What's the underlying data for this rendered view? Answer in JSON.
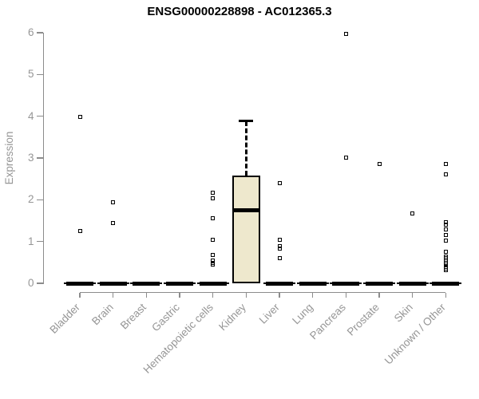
{
  "title": "ENSG00000228898 - AC012365.3",
  "chart_data": {
    "type": "boxplot",
    "title": "ENSG00000228898 - AC012365.3",
    "xlabel": "",
    "ylabel": "Expression",
    "ylim": [
      0,
      6
    ],
    "yticks": [
      0,
      1,
      2,
      3,
      4,
      5,
      6
    ],
    "grid": false,
    "legend": false,
    "categories": [
      "Bladder",
      "Brain",
      "Breast",
      "Gastric",
      "Hematopoietic cells",
      "Kidney",
      "Liver",
      "Lung",
      "Pancreas",
      "Prostate",
      "Skin",
      "Unknown / Other"
    ],
    "boxes": [
      {
        "category": "Bladder",
        "whisker_low": 0,
        "q1": 0,
        "median": 0,
        "q3": 0,
        "whisker_high": 0
      },
      {
        "category": "Brain",
        "whisker_low": 0,
        "q1": 0,
        "median": 0,
        "q3": 0,
        "whisker_high": 0
      },
      {
        "category": "Breast",
        "whisker_low": 0,
        "q1": 0,
        "median": 0,
        "q3": 0,
        "whisker_high": 0
      },
      {
        "category": "Gastric",
        "whisker_low": 0,
        "q1": 0,
        "median": 0,
        "q3": 0,
        "whisker_high": 0
      },
      {
        "category": "Hematopoietic cells",
        "whisker_low": 0,
        "q1": 0,
        "median": 0,
        "q3": 0,
        "whisker_high": 0
      },
      {
        "category": "Kidney",
        "whisker_low": 0,
        "q1": 0,
        "median": 1.75,
        "q3": 2.58,
        "whisker_high": 3.88
      },
      {
        "category": "Liver",
        "whisker_low": 0,
        "q1": 0,
        "median": 0,
        "q3": 0,
        "whisker_high": 0
      },
      {
        "category": "Lung",
        "whisker_low": 0,
        "q1": 0,
        "median": 0,
        "q3": 0,
        "whisker_high": 0
      },
      {
        "category": "Pancreas",
        "whisker_low": 0,
        "q1": 0,
        "median": 0,
        "q3": 0,
        "whisker_high": 0
      },
      {
        "category": "Prostate",
        "whisker_low": 0,
        "q1": 0,
        "median": 0,
        "q3": 0,
        "whisker_high": 0
      },
      {
        "category": "Skin",
        "whisker_low": 0,
        "q1": 0,
        "median": 0,
        "q3": 0,
        "whisker_high": 0
      },
      {
        "category": "Unknown / Other",
        "whisker_low": 0,
        "q1": 0,
        "median": 0,
        "q3": 0,
        "whisker_high": 0
      }
    ],
    "outliers": [
      {
        "category": "Bladder",
        "values": [
          3.98,
          1.26
        ]
      },
      {
        "category": "Brain",
        "values": [
          1.93,
          1.44
        ]
      },
      {
        "category": "Breast",
        "values": []
      },
      {
        "category": "Gastric",
        "values": []
      },
      {
        "category": "Hematopoietic cells",
        "values": [
          2.17,
          2.04,
          1.56,
          1.05,
          0.68,
          0.54,
          0.49,
          0.44
        ]
      },
      {
        "category": "Kidney",
        "values": []
      },
      {
        "category": "Liver",
        "values": [
          2.4,
          1.05,
          0.88,
          0.83,
          0.61
        ]
      },
      {
        "category": "Lung",
        "values": []
      },
      {
        "category": "Pancreas",
        "values": [
          5.97,
          3.01
        ]
      },
      {
        "category": "Prostate",
        "values": [
          2.86
        ]
      },
      {
        "category": "Skin",
        "values": [
          1.68
        ]
      },
      {
        "category": "Unknown / Other",
        "values": [
          2.86,
          2.61,
          1.47,
          1.41,
          1.29,
          1.16,
          1.02,
          0.76,
          0.64,
          0.6,
          0.56,
          0.52,
          0.48,
          0.44,
          0.4,
          0.36,
          0.32
        ]
      }
    ],
    "colors": {
      "box_fill": "#EEE8CD",
      "box_border": "#000000",
      "data": "#000000",
      "axis": "#8c8c8c",
      "tick_label": "#969696",
      "title": "#000000"
    }
  }
}
